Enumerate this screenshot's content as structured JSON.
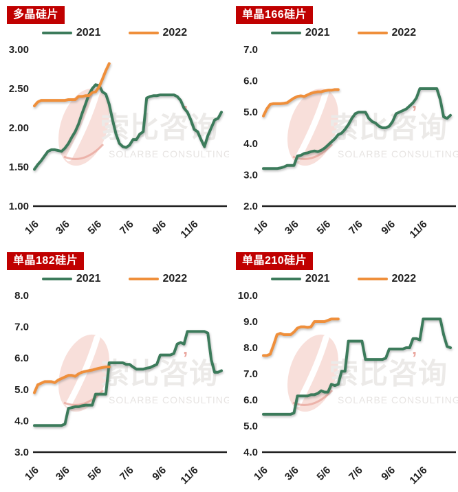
{
  "colors": {
    "title_bg": "#c00000",
    "title_text": "#ffffff",
    "series_2021": "#3c7b5b",
    "series_2022": "#ef8f3b",
    "axis": "#1f1f1f",
    "watermark_pink": "#f7d9d4",
    "watermark_text": "#eceae8",
    "background": "#ffffff"
  },
  "watermark": {
    "zh": "索比咨询",
    "en": "SOLARBE CONSULTING"
  },
  "chart_data": [
    {
      "type": "line",
      "title": "多晶硅片",
      "x_tick_labels": [
        "1/6",
        "3/6",
        "5/6",
        "7/6",
        "9/6",
        "11/6"
      ],
      "y_tick_labels": [
        "1.00",
        "1.50",
        "2.00",
        "2.50",
        "3.00"
      ],
      "ylim": [
        1.0,
        3.0
      ],
      "grid": false,
      "legend_position": "top",
      "series": [
        {
          "name": "2021",
          "color": "#3c7b5b",
          "values": [
            1.47,
            1.53,
            1.58,
            1.64,
            1.7,
            1.72,
            1.72,
            1.71,
            1.7,
            1.74,
            1.8,
            1.88,
            1.95,
            2.05,
            2.18,
            2.3,
            2.42,
            2.5,
            2.55,
            2.54,
            2.46,
            2.43,
            2.3,
            2.1,
            1.92,
            1.8,
            1.76,
            1.75,
            1.78,
            1.85,
            1.85,
            1.92,
            1.95,
            2.38,
            2.4,
            2.41,
            2.41,
            2.42,
            2.42,
            2.42,
            2.42,
            2.42,
            2.4,
            2.35,
            2.25,
            2.2,
            2.1,
            1.98,
            1.95,
            1.85,
            1.76,
            1.9,
            2.0,
            2.1,
            2.12,
            2.2
          ]
        },
        {
          "name": "2022",
          "color": "#ef8f3b",
          "values": [
            2.28,
            2.33,
            2.35,
            2.35,
            2.35,
            2.35,
            2.35,
            2.35,
            2.35,
            2.35,
            2.36,
            2.36,
            2.36,
            2.4,
            2.4,
            2.41,
            2.41,
            2.45,
            2.46,
            2.52,
            2.62,
            2.73,
            2.82
          ]
        }
      ]
    },
    {
      "type": "line",
      "title": "单晶166硅片",
      "x_tick_labels": [
        "1/6",
        "3/6",
        "5/6",
        "7/6",
        "9/6",
        "11/6"
      ],
      "y_tick_labels": [
        "2.0",
        "3.0",
        "4.0",
        "5.0",
        "6.0",
        "7.0"
      ],
      "ylim": [
        2.0,
        7.0
      ],
      "grid": false,
      "legend_position": "top",
      "series": [
        {
          "name": "2021",
          "color": "#3c7b5b",
          "values": [
            3.2,
            3.2,
            3.2,
            3.2,
            3.2,
            3.22,
            3.25,
            3.3,
            3.3,
            3.3,
            3.6,
            3.62,
            3.68,
            3.7,
            3.74,
            3.76,
            3.74,
            3.78,
            3.85,
            3.95,
            4.05,
            4.15,
            4.28,
            4.33,
            4.45,
            4.6,
            4.8,
            4.95,
            5.0,
            5.0,
            5.0,
            4.8,
            4.7,
            4.65,
            4.55,
            4.5,
            4.5,
            4.55,
            4.7,
            4.95,
            5.0,
            5.05,
            5.1,
            5.2,
            5.3,
            5.45,
            5.75,
            5.75,
            5.75,
            5.75,
            5.75,
            5.75,
            5.4,
            4.85,
            4.8,
            4.9
          ]
        },
        {
          "name": "2022",
          "color": "#ef8f3b",
          "values": [
            4.88,
            5.1,
            5.25,
            5.27,
            5.27,
            5.27,
            5.28,
            5.3,
            5.38,
            5.45,
            5.5,
            5.52,
            5.5,
            5.55,
            5.6,
            5.63,
            5.65,
            5.65,
            5.68,
            5.7,
            5.7,
            5.72,
            5.72
          ]
        }
      ]
    },
    {
      "type": "line",
      "title": "单晶182硅片",
      "x_tick_labels": [
        "1/6",
        "3/6",
        "5/6",
        "7/6",
        "9/6",
        "11/6"
      ],
      "y_tick_labels": [
        "3.0",
        "4.0",
        "5.0",
        "6.0",
        "7.0",
        "8.0"
      ],
      "ylim": [
        3.0,
        8.0
      ],
      "grid": false,
      "legend_position": "top",
      "series": [
        {
          "name": "2021",
          "color": "#3c7b5b",
          "values": [
            3.85,
            3.85,
            3.85,
            3.85,
            3.85,
            3.85,
            3.85,
            3.85,
            3.85,
            3.9,
            4.4,
            4.42,
            4.45,
            4.45,
            4.48,
            4.5,
            4.5,
            4.5,
            4.85,
            4.85,
            4.85,
            4.85,
            5.85,
            5.85,
            5.85,
            5.85,
            5.85,
            5.8,
            5.8,
            5.72,
            5.65,
            5.65,
            5.65,
            5.68,
            5.7,
            5.75,
            5.8,
            6.1,
            6.1,
            6.1,
            6.1,
            6.15,
            6.45,
            6.5,
            6.45,
            6.85,
            6.85,
            6.85,
            6.85,
            6.85,
            6.85,
            6.8,
            5.95,
            5.55,
            5.55,
            5.6
          ]
        },
        {
          "name": "2022",
          "color": "#ef8f3b",
          "values": [
            4.9,
            5.15,
            5.2,
            5.25,
            5.25,
            5.25,
            5.22,
            5.3,
            5.35,
            5.4,
            5.45,
            5.45,
            5.42,
            5.5,
            5.55,
            5.58,
            5.6,
            5.62,
            5.65,
            5.68,
            5.7,
            5.72,
            5.72
          ]
        }
      ]
    },
    {
      "type": "line",
      "title": "单晶210硅片",
      "x_tick_labels": [
        "1/6",
        "3/6",
        "5/6",
        "7/6",
        "9/6",
        "11/6"
      ],
      "y_tick_labels": [
        "4.0",
        "5.0",
        "6.0",
        "7.0",
        "8.0",
        "9.0",
        "10.0"
      ],
      "ylim": [
        4.0,
        10.0
      ],
      "grid": false,
      "legend_position": "top",
      "series": [
        {
          "name": "2021",
          "color": "#3c7b5b",
          "values": [
            5.45,
            5.45,
            5.45,
            5.45,
            5.45,
            5.45,
            5.45,
            5.45,
            5.45,
            5.5,
            6.15,
            6.15,
            6.15,
            6.15,
            6.2,
            6.2,
            6.25,
            6.35,
            6.3,
            6.3,
            6.6,
            6.55,
            6.6,
            7.1,
            7.1,
            8.25,
            8.25,
            8.25,
            8.25,
            8.25,
            7.55,
            7.55,
            7.55,
            7.55,
            7.55,
            7.55,
            7.6,
            7.95,
            7.95,
            7.95,
            7.95,
            7.95,
            8.0,
            8.0,
            8.35,
            8.35,
            8.3,
            9.1,
            9.1,
            9.1,
            9.1,
            9.1,
            9.1,
            8.5,
            8.05,
            8.0
          ]
        },
        {
          "name": "2022",
          "color": "#ef8f3b",
          "values": [
            7.7,
            7.7,
            7.75,
            8.1,
            8.5,
            8.55,
            8.5,
            8.5,
            8.5,
            8.6,
            8.75,
            8.8,
            8.8,
            8.78,
            8.8,
            9.0,
            9.0,
            9.0,
            9.0,
            9.05,
            9.1,
            9.1,
            9.1
          ]
        }
      ]
    }
  ]
}
